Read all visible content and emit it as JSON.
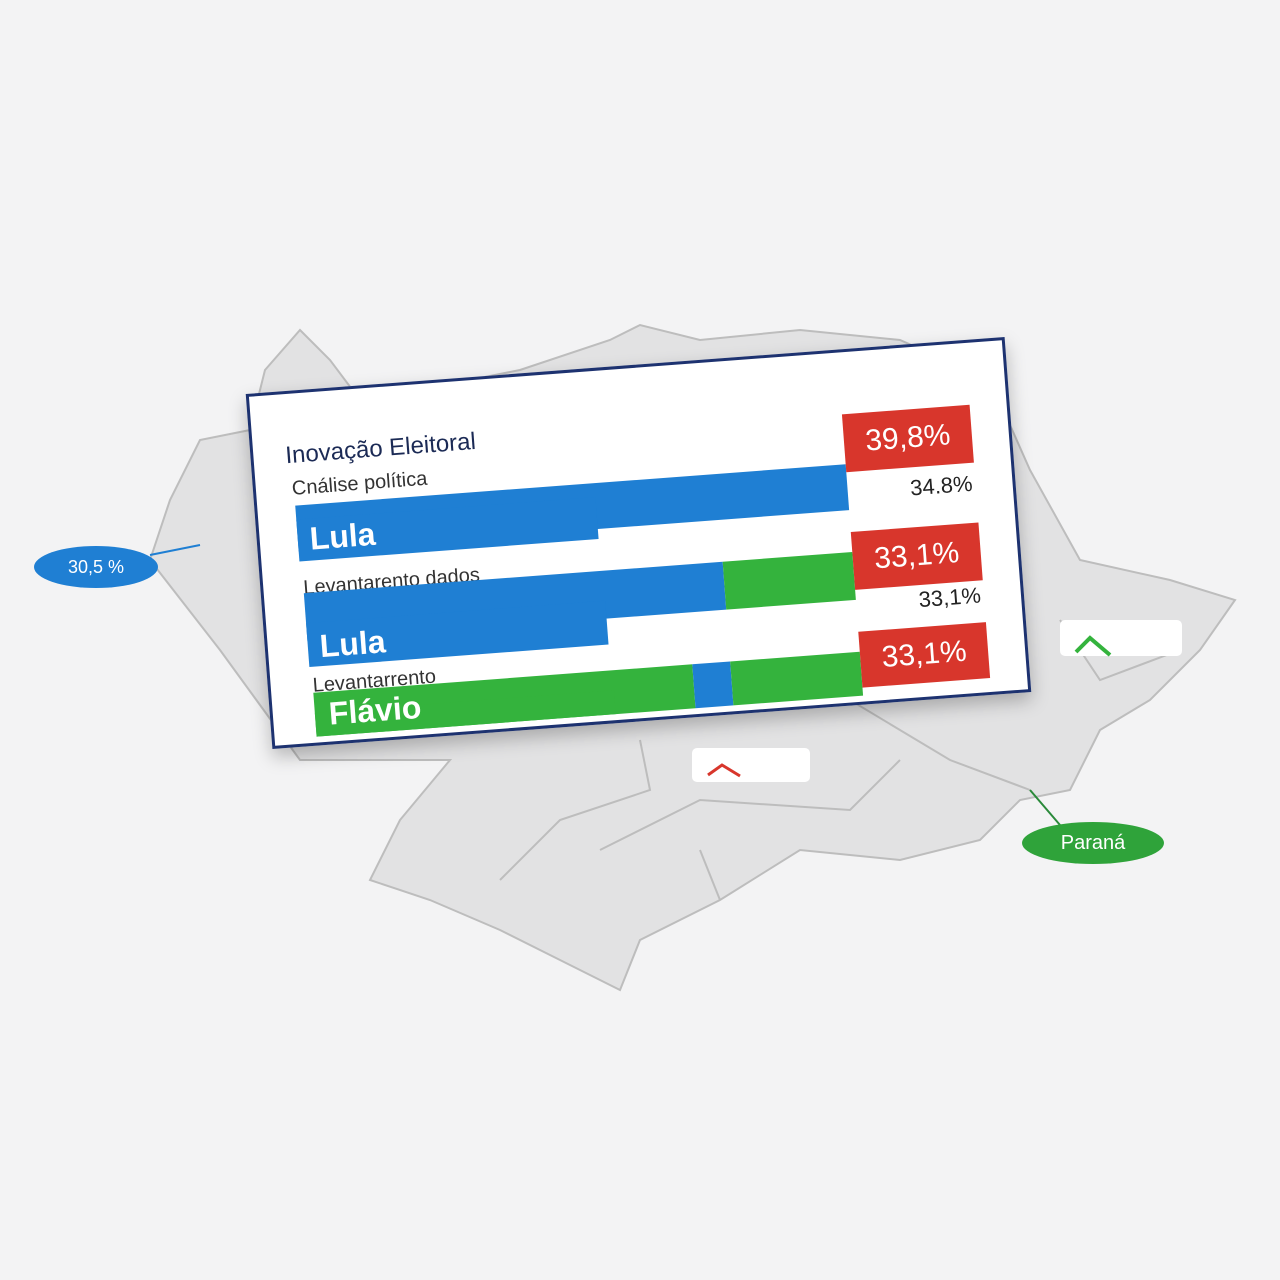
{
  "card": {
    "title": "Inovação Eleitoral",
    "subtitle": "Cnálise política",
    "rows": [
      {
        "name": "Lula",
        "value_label": "39,8%",
        "side_label": "34.8%"
      },
      {
        "label": "Levantarento dados",
        "name": "Lula",
        "value_label": "33,1%",
        "side_label": "33,1%"
      },
      {
        "label": "Levantarrento",
        "name": "Flávio",
        "value_label": "33,1%"
      }
    ]
  },
  "map": {
    "callouts": [
      {
        "label": "30,5 %"
      },
      {
        "label": "Paraná"
      }
    ]
  }
}
